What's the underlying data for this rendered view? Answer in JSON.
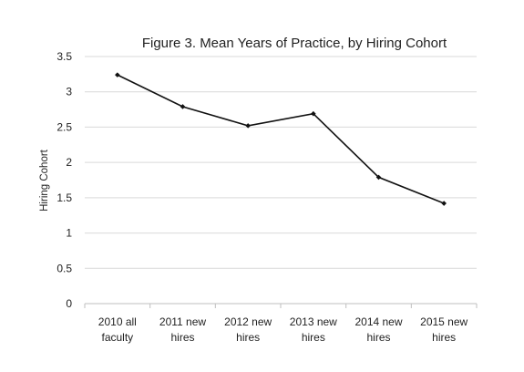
{
  "chart_data": {
    "type": "line",
    "title": "Figure 3. Mean Years of Practice, by Hiring Cohort",
    "xlabel": "",
    "ylabel": "Hiring Cohort",
    "ylim": [
      0,
      3.5
    ],
    "y_ticks": [
      "0",
      "0.5",
      "1",
      "1.5",
      "2",
      "2.5",
      "3",
      "3.5"
    ],
    "categories": [
      [
        "2010 all",
        "faculty"
      ],
      [
        "2011 new",
        "hires"
      ],
      [
        "2012 new",
        "hires"
      ],
      [
        "2013 new",
        "hires"
      ],
      [
        "2014 new",
        "hires"
      ],
      [
        "2015 new",
        "hires"
      ]
    ],
    "series": [
      {
        "values": [
          3.24,
          2.79,
          2.52,
          2.69,
          1.79,
          1.42
        ]
      }
    ],
    "grid": true,
    "legend": "none",
    "colors": {
      "line": "#111111",
      "grid": "#d9d9d9",
      "axis": "#bfbfbf"
    }
  }
}
